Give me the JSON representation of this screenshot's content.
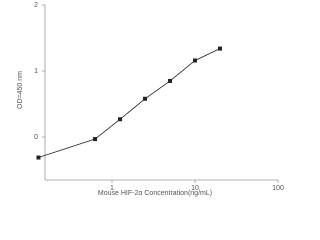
{
  "chart_data": {
    "type": "line",
    "x_label": "Mouse HIF-2α  Concentration(ng/mL)",
    "y_label": "OD=450 nm",
    "x": [
      0.13,
      0.625,
      1.25,
      2.5,
      5,
      10,
      20
    ],
    "series": [
      {
        "color": "#222222",
        "values": [
          -0.31,
          -0.03,
          0.27,
          0.58,
          0.85,
          1.16,
          1.34
        ]
      }
    ],
    "xlim": [
      0.1,
      100
    ],
    "xticks": [
      1,
      10,
      100
    ],
    "xscale": "log",
    "ylim": [
      -0.65,
      2
    ],
    "yticks": [
      0,
      1,
      2
    ],
    "grid": false
  }
}
